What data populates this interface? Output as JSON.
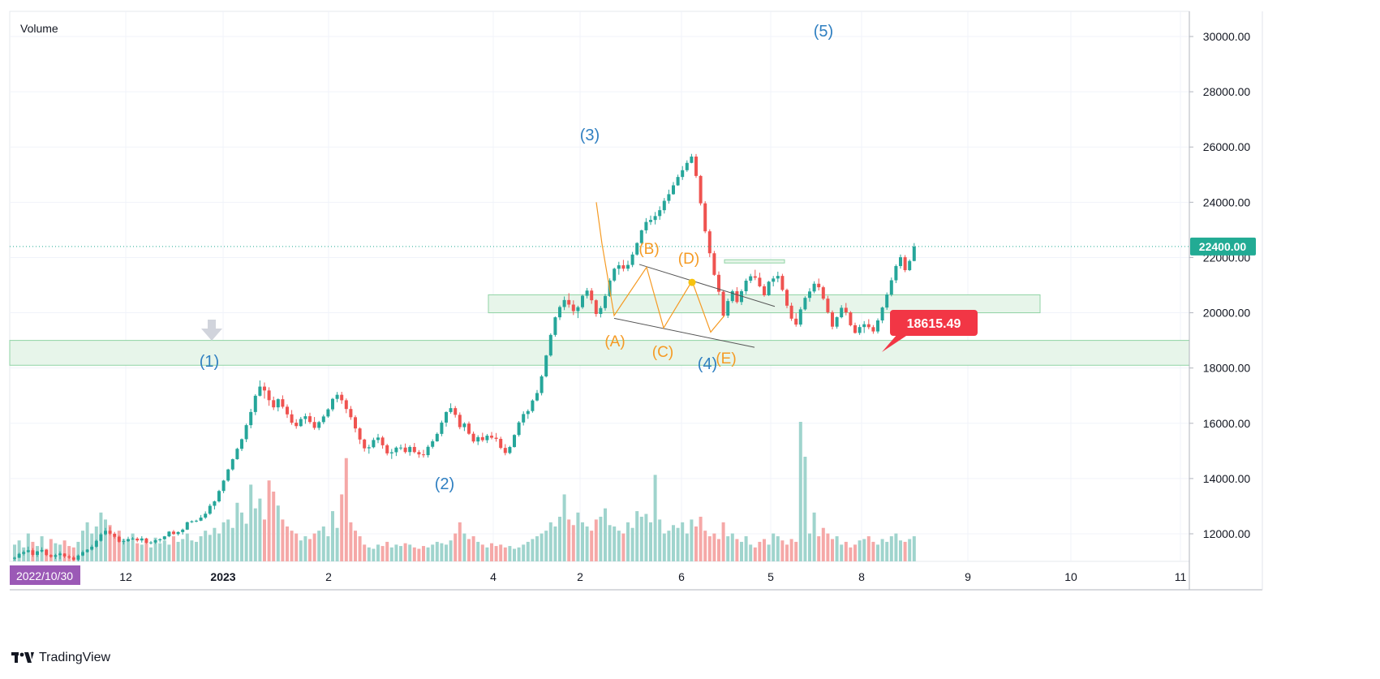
{
  "indicator_label": "Volume",
  "brand": "TradingView",
  "last_price_label": "22400.00",
  "callout_price_label": "18615.49",
  "colors": {
    "up": "#26a69a",
    "down": "#ef5350",
    "up_volume": "#9fd4cd",
    "down_volume": "#f5a8a7",
    "wave_blue": "#2f7fc1",
    "wave_orange": "#f59a23",
    "zone_fill": "#e7f5ea",
    "zone_stroke": "#8fd3a4",
    "callout": "#f23645",
    "date_tag": "#9b59b6",
    "last_price_tag": "#22ab94"
  },
  "chart_data": {
    "type": "candlestick",
    "y_range": [
      11000,
      31000
    ],
    "y_ticks": [
      "30000.00",
      "28000.00",
      "26000.00",
      "24000.00",
      "22000.00",
      "20000.00",
      "18000.00",
      "16000.00",
      "14000.00",
      "12000.00"
    ],
    "x_ticks": [
      "2022/10/30",
      "12",
      "2023",
      "2",
      "4",
      "2",
      "6",
      "5",
      "8",
      "9",
      "10",
      "11"
    ],
    "last_price": 22400,
    "callout_price": 18615.49,
    "elliott_waves": [
      {
        "label": "(1)",
        "price": 17700
      },
      {
        "label": "(2)",
        "price": 14800
      },
      {
        "label": "(3)",
        "price": 25800
      },
      {
        "label": "(4)",
        "price": 19000
      },
      {
        "label": "(5)",
        "price": 30400
      }
    ],
    "triangle_waves": [
      {
        "label": "(A)",
        "price": 19800
      },
      {
        "label": "(B)",
        "price": 21700
      },
      {
        "label": "(C)",
        "price": 19400
      },
      {
        "label": "(D)",
        "price": 21100
      },
      {
        "label": "(E)",
        "price": 19200
      }
    ],
    "support_zones": [
      {
        "low": 18100,
        "high": 19000
      },
      {
        "low": 20000,
        "high": 20650
      }
    ],
    "candles": [
      [
        11098,
        11172,
        11037,
        11133
      ],
      [
        11133,
        11314,
        11124,
        11275
      ],
      [
        11275,
        11400,
        11217,
        11339
      ],
      [
        11339,
        11535,
        11317,
        11404
      ],
      [
        11404,
        11481,
        11170,
        11237
      ],
      [
        11237,
        11383,
        11162,
        11362
      ],
      [
        11362,
        11512,
        11324,
        11416
      ],
      [
        11416,
        11439,
        11191,
        11230
      ],
      [
        11230,
        11260,
        11130,
        11168
      ],
      [
        11168,
        11278,
        11088,
        11227
      ],
      [
        11227,
        11360,
        11077,
        11286
      ],
      [
        11286,
        11295,
        11121,
        11180
      ],
      [
        11180,
        11246,
        11089,
        11142
      ],
      [
        11142,
        11204,
        11017,
        11063
      ],
      [
        11063,
        11252,
        11009,
        11214
      ],
      [
        11214,
        11400,
        11188,
        11337
      ],
      [
        11337,
        11442,
        11320,
        11428
      ],
      [
        11428,
        11602,
        11394,
        11532
      ],
      [
        11532,
        11790,
        11493,
        11745
      ],
      [
        11745,
        12036,
        11716,
        11982
      ],
      [
        11982,
        12213,
        11945,
        12108
      ],
      [
        12108,
        12250,
        11952,
        12004
      ],
      [
        12004,
        12068,
        11829,
        11892
      ],
      [
        11892,
        11932,
        11675,
        11711
      ],
      [
        11711,
        11817,
        11613,
        11733
      ],
      [
        11733,
        11892,
        11705,
        11811
      ],
      [
        11811,
        11882,
        11779,
        11826
      ],
      [
        11826,
        11877,
        11697,
        11759
      ],
      [
        11759,
        11914,
        11680,
        11831
      ],
      [
        11831,
        11856,
        11638,
        11676
      ],
      [
        11676,
        11738,
        11614,
        11687
      ],
      [
        11687,
        11807,
        11636,
        11765
      ],
      [
        11765,
        11838,
        11686,
        11801
      ],
      [
        11801,
        11921,
        11773,
        11908
      ],
      [
        11908,
        12097,
        11877,
        12078
      ],
      [
        12078,
        12135,
        11955,
        11990
      ],
      [
        11990,
        12088,
        11934,
        12062
      ],
      [
        12062,
        12189,
        11971,
        12151
      ],
      [
        12151,
        12441,
        12136,
        12418
      ],
      [
        12418,
        12486,
        12393,
        12453
      ],
      [
        12453,
        12512,
        12413,
        12474
      ],
      [
        12474,
        12679,
        12458,
        12587
      ],
      [
        12587,
        12811,
        12537,
        12726
      ],
      [
        12726,
        13086,
        12684,
        13014
      ],
      [
        13014,
        13201,
        12880,
        13173
      ],
      [
        13173,
        13592,
        13130,
        13550
      ],
      [
        13550,
        13951,
        13470,
        13926
      ],
      [
        13926,
        14354,
        13882,
        14329
      ],
      [
        14329,
        14722,
        14281,
        14699
      ],
      [
        14699,
        15116,
        14682,
        15076
      ],
      [
        15076,
        15451,
        14996,
        15424
      ],
      [
        15424,
        15987,
        15319,
        15932
      ],
      [
        15932,
        16523,
        15818,
        16408
      ],
      [
        16408,
        17053,
        16295,
        16996
      ],
      [
        16996,
        17550,
        16971,
        17328
      ],
      [
        17328,
        17478,
        16893,
        17188
      ],
      [
        17188,
        17304,
        16633,
        16836
      ],
      [
        16836,
        16966,
        16480,
        16577
      ],
      [
        16577,
        16901,
        16431,
        16871
      ],
      [
        16871,
        17010,
        16532,
        16598
      ],
      [
        16598,
        16684,
        16196,
        16324
      ],
      [
        16324,
        16480,
        15946,
        16021
      ],
      [
        16021,
        16148,
        15802,
        15898
      ],
      [
        15898,
        16229,
        15868,
        16155
      ],
      [
        16155,
        16357,
        15981,
        16256
      ],
      [
        16256,
        16382,
        15979,
        16046
      ],
      [
        16046,
        16227,
        15764,
        15834
      ],
      [
        15834,
        16087,
        15751,
        16042
      ],
      [
        16042,
        16314,
        15969,
        16247
      ],
      [
        16247,
        16547,
        16199,
        16504
      ],
      [
        16504,
        16920,
        16429,
        16883
      ],
      [
        16883,
        17133,
        16761,
        17031
      ],
      [
        17031,
        17139,
        16704,
        16833
      ],
      [
        16833,
        16899,
        16365,
        16517
      ],
      [
        16517,
        16626,
        16126,
        16219
      ],
      [
        16219,
        16288,
        15672,
        15813
      ],
      [
        15813,
        15856,
        15249,
        15412
      ],
      [
        15412,
        15440,
        14976,
        15094
      ],
      [
        15094,
        15225,
        14899,
        15133
      ],
      [
        15133,
        15478,
        15094,
        15395
      ],
      [
        15395,
        15617,
        15282,
        15484
      ],
      [
        15484,
        15543,
        15080,
        15204
      ],
      [
        15204,
        15256,
        14837,
        14911
      ],
      [
        14911,
        15070,
        14708,
        14951
      ],
      [
        14951,
        15164,
        14815,
        15119
      ],
      [
        15119,
        15231,
        15029,
        15121
      ],
      [
        15121,
        15267,
        14903,
        14958
      ],
      [
        14958,
        15206,
        14827,
        15143
      ],
      [
        15143,
        15286,
        14911,
        14958
      ],
      [
        14958,
        15031,
        14751,
        14874
      ],
      [
        14874,
        15039,
        14762,
        14846
      ],
      [
        14846,
        15215,
        14760,
        15149
      ],
      [
        15149,
        15420,
        15085,
        15348
      ],
      [
        15348,
        15669,
        15329,
        15616
      ],
      [
        15616,
        16098,
        15531,
        16026
      ],
      [
        16026,
        16429,
        15881,
        16407
      ],
      [
        16407,
        16722,
        16349,
        16548
      ],
      [
        16548,
        16624,
        16206,
        16306
      ],
      [
        16306,
        16394,
        15784,
        15860
      ],
      [
        15860,
        16038,
        15719,
        15988
      ],
      [
        15988,
        16064,
        15580,
        15621
      ],
      [
        15621,
        15701,
        15278,
        15341
      ],
      [
        15341,
        15567,
        15212,
        15498
      ],
      [
        15498,
        15657,
        15326,
        15388
      ],
      [
        15388,
        15613,
        15284,
        15551
      ],
      [
        15551,
        15686,
        15418,
        15478
      ],
      [
        15478,
        15648,
        15334,
        15436
      ],
      [
        15436,
        15514,
        15057,
        15109
      ],
      [
        15109,
        15245,
        14841,
        14924
      ],
      [
        14924,
        15185,
        14880,
        15141
      ],
      [
        15141,
        15606,
        15119,
        15577
      ],
      [
        15577,
        16082,
        15517,
        16031
      ],
      [
        16031,
        16432,
        15920,
        16334
      ],
      [
        16334,
        16504,
        16161,
        16442
      ],
      [
        16442,
        16868,
        16383,
        16825
      ],
      [
        16825,
        17205,
        16792,
        17095
      ],
      [
        17095,
        17755,
        17009,
        17698
      ],
      [
        17698,
        18477,
        17659,
        18454
      ],
      [
        18454,
        19256,
        18410,
        19199
      ],
      [
        19199,
        19866,
        19134,
        19836
      ],
      [
        19836,
        20267,
        19736,
        20209
      ],
      [
        20209,
        20590,
        20096,
        20461
      ],
      [
        20461,
        20709,
        20185,
        20296
      ],
      [
        20296,
        20450,
        19917,
        20061
      ],
      [
        20061,
        20256,
        19808,
        20201
      ],
      [
        20201,
        20661,
        20142,
        20615
      ],
      [
        20615,
        20899,
        20519,
        20803
      ],
      [
        20803,
        20893,
        20324,
        20453
      ],
      [
        20453,
        20492,
        19858,
        19957
      ],
      [
        19957,
        20244,
        19830,
        20170
      ],
      [
        20170,
        20686,
        20077,
        20607
      ],
      [
        20607,
        21247,
        20577,
        21167
      ],
      [
        21167,
        21633,
        21117,
        21593
      ],
      [
        21593,
        21846,
        21377,
        21720
      ],
      [
        21720,
        21915,
        21497,
        21596
      ],
      [
        21596,
        21883,
        21506,
        21732
      ],
      [
        21732,
        22202,
        21652,
        22108
      ],
      [
        22108,
        22553,
        22068,
        22525
      ],
      [
        22525,
        23008,
        22472,
        22984
      ],
      [
        22984,
        23427,
        22869,
        23287
      ],
      [
        23287,
        23517,
        23179,
        23359
      ],
      [
        23359,
        23648,
        23198,
        23501
      ],
      [
        23501,
        23853,
        23366,
        23713
      ],
      [
        23713,
        24154,
        23592,
        24052
      ],
      [
        24052,
        24456,
        23949,
        24292
      ],
      [
        24292,
        24733,
        24272,
        24613
      ],
      [
        24613,
        25001,
        24594,
        24916
      ],
      [
        24916,
        25310,
        24809,
        25160
      ],
      [
        25160,
        25518,
        25101,
        25426
      ],
      [
        25426,
        25751,
        25411,
        25653
      ],
      [
        25653,
        25746,
        24882,
        24953
      ],
      [
        24953,
        24987,
        23884,
        23962
      ],
      [
        23962,
        24037,
        22882,
        22948
      ],
      [
        22948,
        23022,
        22015,
        22154
      ],
      [
        22154,
        22238,
        21337,
        21373
      ],
      [
        21373,
        21494,
        20641,
        20762
      ],
      [
        20762,
        20821,
        19829,
        19898
      ],
      [
        19898,
        20513,
        19811,
        20424
      ],
      [
        20424,
        20840,
        20356,
        20779
      ],
      [
        20779,
        20926,
        20332,
        20388
      ],
      [
        20388,
        20851,
        20282,
        20780
      ],
      [
        20780,
        21237,
        20670,
        21162
      ],
      [
        21162,
        21408,
        21075,
        21321
      ],
      [
        21321,
        21556,
        21181,
        21268
      ],
      [
        21268,
        21450,
        20921,
        20958
      ],
      [
        20958,
        21036,
        20583,
        20634
      ],
      [
        20634,
        21157,
        20607,
        21124
      ],
      [
        21124,
        21332,
        20955,
        21240
      ],
      [
        21240,
        21487,
        21107,
        21334
      ],
      [
        21334,
        21410,
        20774,
        20828
      ],
      [
        20828,
        20874,
        20167,
        20257
      ],
      [
        20257,
        20365,
        19708,
        19787
      ],
      [
        19787,
        19983,
        19496,
        19573
      ],
      [
        19573,
        20207,
        19497,
        20123
      ],
      [
        20123,
        20598,
        20079,
        20540
      ],
      [
        20540,
        20890,
        20402,
        20771
      ],
      [
        20771,
        21140,
        20704,
        21051
      ],
      [
        21051,
        21239,
        20808,
        20924
      ],
      [
        20924,
        20978,
        20455,
        20511
      ],
      [
        20511,
        20614,
        19969,
        20018
      ],
      [
        20018,
        20087,
        19398,
        19497
      ],
      [
        19497,
        19867,
        19423,
        19839
      ],
      [
        19839,
        20276,
        19798,
        20180
      ],
      [
        20180,
        20353,
        19907,
        20015
      ],
      [
        20015,
        20059,
        19509,
        19549
      ],
      [
        19549,
        19641,
        19245,
        19270
      ],
      [
        19270,
        19570,
        19198,
        19483
      ],
      [
        19483,
        19699,
        19267,
        19585
      ],
      [
        19585,
        19767,
        19402,
        19479
      ],
      [
        19479,
        19555,
        19240,
        19324
      ],
      [
        19324,
        19795,
        19251,
        19723
      ],
      [
        19723,
        20225,
        19624,
        20189
      ],
      [
        20189,
        20735,
        20108,
        20660
      ],
      [
        20660,
        21276,
        20595,
        21176
      ],
      [
        21176,
        21751,
        21073,
        21691
      ],
      [
        21691,
        22107,
        21598,
        22011
      ],
      [
        22011,
        22088,
        21470,
        21543
      ],
      [
        21543,
        21932,
        21509,
        21875
      ],
      [
        21875,
        22522,
        21863,
        22400
      ]
    ],
    "volume_ratio": [
      0.12,
      0.15,
      0.1,
      0.2,
      0.14,
      0.11,
      0.18,
      0.09,
      0.16,
      0.13,
      0.12,
      0.15,
      0.11,
      0.1,
      0.14,
      0.22,
      0.28,
      0.2,
      0.25,
      0.35,
      0.3,
      0.26,
      0.18,
      0.22,
      0.16,
      0.15,
      0.2,
      0.13,
      0.12,
      0.14,
      0.1,
      0.17,
      0.13,
      0.15,
      0.12,
      0.18,
      0.14,
      0.16,
      0.2,
      0.15,
      0.14,
      0.18,
      0.22,
      0.19,
      0.24,
      0.2,
      0.28,
      0.3,
      0.24,
      0.42,
      0.35,
      0.27,
      0.55,
      0.38,
      0.45,
      0.3,
      0.58,
      0.5,
      0.4,
      0.3,
      0.25,
      0.22,
      0.2,
      0.15,
      0.18,
      0.16,
      0.2,
      0.22,
      0.25,
      0.18,
      0.36,
      0.24,
      0.48,
      0.74,
      0.28,
      0.22,
      0.18,
      0.12,
      0.1,
      0.09,
      0.12,
      0.11,
      0.14,
      0.1,
      0.12,
      0.11,
      0.13,
      0.12,
      0.1,
      0.09,
      0.11,
      0.1,
      0.12,
      0.14,
      0.13,
      0.12,
      0.15,
      0.2,
      0.28,
      0.2,
      0.16,
      0.18,
      0.14,
      0.12,
      0.1,
      0.13,
      0.11,
      0.12,
      0.1,
      0.11,
      0.09,
      0.1,
      0.12,
      0.14,
      0.16,
      0.18,
      0.2,
      0.22,
      0.28,
      0.25,
      0.32,
      0.48,
      0.3,
      0.26,
      0.35,
      0.28,
      0.25,
      0.22,
      0.3,
      0.32,
      0.38,
      0.26,
      0.25,
      0.22,
      0.2,
      0.28,
      0.24,
      0.36,
      0.32,
      0.34,
      0.28,
      0.62,
      0.3,
      0.2,
      0.22,
      0.26,
      0.24,
      0.28,
      0.2,
      0.3,
      0.25,
      0.32,
      0.22,
      0.18,
      0.2,
      0.16,
      0.28,
      0.18,
      0.2,
      0.16,
      0.14,
      0.18,
      0.12,
      0.1,
      0.14,
      0.16,
      0.12,
      0.2,
      0.18,
      0.15,
      0.12,
      0.16,
      0.14,
      1.0,
      0.75,
      0.2,
      0.35,
      0.18,
      0.24,
      0.2,
      0.16,
      0.18,
      0.12,
      0.14,
      0.1,
      0.12,
      0.15,
      0.16,
      0.18,
      0.14,
      0.12,
      0.16,
      0.14,
      0.18,
      0.2,
      0.15,
      0.14,
      0.16,
      0.18
    ]
  }
}
